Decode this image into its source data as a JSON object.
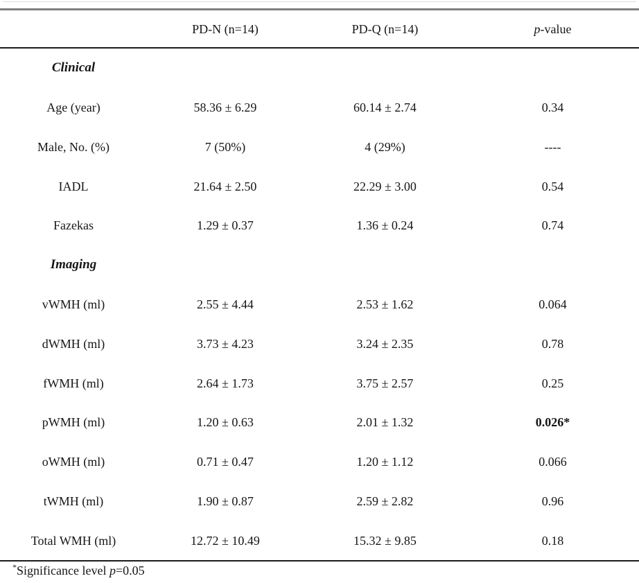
{
  "table": {
    "header": {
      "col0": "",
      "col1": "PD-N (n=14)",
      "col2": "PD-Q (n=14)",
      "p_italic": "p",
      "p_rest": "-value"
    },
    "rows": [
      {
        "type": "section",
        "label": "Clinical",
        "pdn": "",
        "pdq": "",
        "p": ""
      },
      {
        "type": "data",
        "label": "Age (year)",
        "pdn": "58.36 ± 6.29",
        "pdq": "60.14 ± 2.74",
        "p": "0.34"
      },
      {
        "type": "data",
        "label": "Male, No. (%)",
        "pdn": "7 (50%)",
        "pdq": "4 (29%)",
        "p": "----"
      },
      {
        "type": "data",
        "label": "IADL",
        "pdn": "21.64 ± 2.50",
        "pdq": "22.29 ± 3.00",
        "p": "0.54"
      },
      {
        "type": "data",
        "label": "Fazekas",
        "pdn": "1.29 ± 0.37",
        "pdq": "1.36 ± 0.24",
        "p": "0.74"
      },
      {
        "type": "section",
        "label": "Imaging",
        "pdn": "",
        "pdq": "",
        "p": ""
      },
      {
        "type": "data",
        "label": "vWMH (ml)",
        "pdn": "2.55 ± 4.44",
        "pdq": "2.53 ± 1.62",
        "p": "0.064"
      },
      {
        "type": "data",
        "label": "dWMH (ml)",
        "pdn": "3.73 ± 4.23",
        "pdq": "3.24 ± 2.35",
        "p": "0.78"
      },
      {
        "type": "data",
        "label": "fWMH (ml)",
        "pdn": "2.64 ± 1.73",
        "pdq": "3.75 ± 2.57",
        "p": "0.25"
      },
      {
        "type": "data",
        "label": "pWMH (ml)",
        "pdn": "1.20 ± 0.63",
        "pdq": "2.01 ± 1.32",
        "p": "0.026*",
        "bold_p": true
      },
      {
        "type": "data",
        "label": "oWMH (ml)",
        "pdn": "0.71 ± 0.47",
        "pdq": "1.20 ± 1.12",
        "p": "0.066"
      },
      {
        "type": "data",
        "label": "tWMH (ml)",
        "pdn": "1.90 ± 0.87",
        "pdq": "2.59 ± 2.82",
        "p": "0.96"
      },
      {
        "type": "data",
        "label": "Total WMH (ml)",
        "pdn": "12.72 ± 10.49",
        "pdq": "15.32 ± 9.85",
        "p": "0.18"
      }
    ],
    "footnote": {
      "sup": "*",
      "before_p": "Significance level ",
      "p_italic": "p",
      "after_p": "=0.05"
    }
  },
  "colors": {
    "top_faint_rule": "#dcdcdc",
    "top_gray_rule": "#7e7e7e",
    "dark_rule": "#1b1b1b",
    "text": "#161616"
  }
}
